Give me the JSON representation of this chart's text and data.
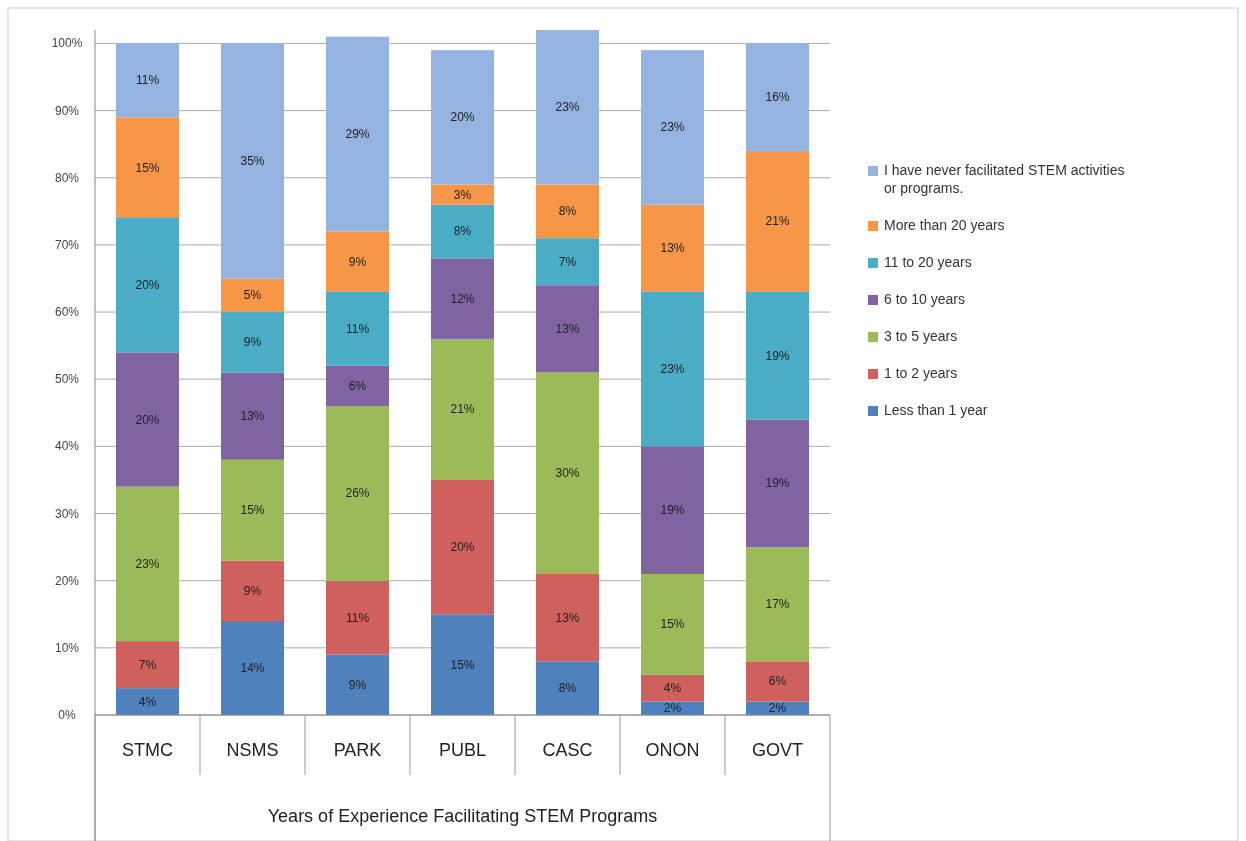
{
  "chart_data": {
    "type": "bar",
    "stacked": true,
    "grid": "y",
    "legend": "right",
    "xlabel": "Years of Experience Facilitating STEM Programs",
    "categories": [
      "STMC",
      "NSMS",
      "PARK",
      "PUBL",
      "CASC",
      "ONON",
      "GOVT"
    ],
    "ylim": [
      0,
      102
    ],
    "yticks": [
      {
        "value": 0,
        "label": "0%"
      },
      {
        "value": 10,
        "label": "10%"
      },
      {
        "value": 20,
        "label": "20%"
      },
      {
        "value": 30,
        "label": "30%"
      },
      {
        "value": 40,
        "label": "40%"
      },
      {
        "value": 50,
        "label": "50%"
      },
      {
        "value": 60,
        "label": "60%"
      },
      {
        "value": 70,
        "label": "70%"
      },
      {
        "value": 80,
        "label": "80%"
      },
      {
        "value": 90,
        "label": "90%"
      },
      {
        "value": 100,
        "label": "100%"
      }
    ],
    "series": [
      {
        "name": "Less than 1 year",
        "color": "#4f81bd",
        "values": [
          4,
          14,
          9,
          15,
          8,
          2,
          2
        ],
        "value_labels": [
          "4%",
          "14%",
          "9%",
          "15%",
          "8%",
          "2%",
          "2%"
        ]
      },
      {
        "name": "1 to 2 years",
        "color": "#d0605d",
        "values": [
          7,
          9,
          11,
          20,
          13,
          4,
          6
        ],
        "value_labels": [
          "7%",
          "9%",
          "11%",
          "20%",
          "13%",
          "4%",
          "6%"
        ]
      },
      {
        "name": "3 to 5 years",
        "color": "#9bbb59",
        "values": [
          23,
          15,
          26,
          21,
          30,
          15,
          17
        ],
        "value_labels": [
          "23%",
          "15%",
          "26%",
          "21%",
          "30%",
          "15%",
          "17%"
        ]
      },
      {
        "name": "6 to 10 years",
        "color": "#8064a2",
        "values": [
          20,
          13,
          6,
          12,
          13,
          19,
          19
        ],
        "value_labels": [
          "20%",
          "13%",
          "6%",
          "12%",
          "13%",
          "19%",
          "19%"
        ]
      },
      {
        "name": "11 to 20 years",
        "color": "#4bacc6",
        "values": [
          20,
          9,
          11,
          8,
          7,
          23,
          19
        ],
        "value_labels": [
          "20%",
          "9%",
          "11%",
          "8%",
          "7%",
          "23%",
          "19%"
        ]
      },
      {
        "name": "More than 20 years",
        "color": "#f79646",
        "values": [
          15,
          5,
          9,
          3,
          8,
          13,
          21
        ],
        "value_labels": [
          "15%",
          "5%",
          "9%",
          "3%",
          "8%",
          "13%",
          "21%"
        ]
      },
      {
        "name": "I have never facilitated STEM activities or programs.",
        "color": "#95b3e0",
        "values": [
          11,
          35,
          29,
          20,
          23,
          23,
          16
        ],
        "value_labels": [
          "11%",
          "35%",
          "29%",
          "20%",
          "23%",
          "23%",
          "16%"
        ]
      }
    ]
  }
}
